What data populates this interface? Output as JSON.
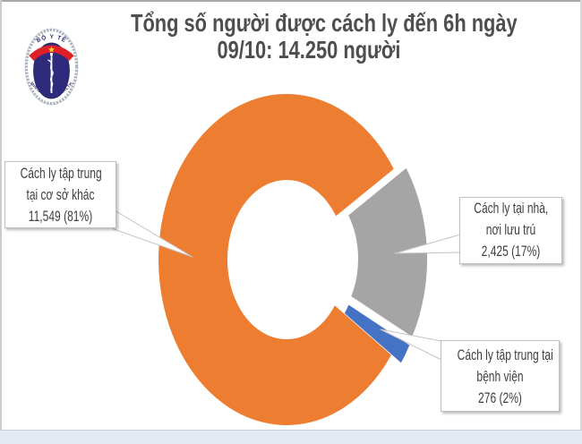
{
  "title": {
    "line1": "Tổng số người được cách ly đến 6h ngày",
    "line2": "09/10: 14.250 người"
  },
  "logo": {
    "top_text": "BỘ Y TẾ",
    "bottom_text": "MINISTRY OF HEALTH"
  },
  "chart_data": {
    "type": "pie",
    "variant": "doughnut-exploded",
    "title": "Tổng số người được cách ly đến 6h ngày 09/10: 14.250 người",
    "total_display": "14.250 người",
    "rotation_deg_clockwise_from_top": 125.2,
    "legend": "none",
    "series": [
      {
        "name": "Cách ly tập trung tại cơ sở khác",
        "value": 11549,
        "display_value": "11,549",
        "pct": 81,
        "color": "#ED7D31",
        "exploded": false
      },
      {
        "name": "Cách ly tại nhà, nơi lưu trú",
        "value": 2425,
        "display_value": "2,425",
        "pct": 17,
        "color": "#A5A5A5",
        "exploded": true
      },
      {
        "name": "Cách ly tập trung tại bệnh viện",
        "value": 276,
        "display_value": "276",
        "pct": 2,
        "color": "#4472C4",
        "exploded": true
      }
    ]
  },
  "callouts": [
    {
      "lines": [
        "Cách ly tập trung",
        "tại cơ sở khác",
        "11,549 (81%)"
      ]
    },
    {
      "lines": [
        "Cách ly tại nhà,",
        "nơi lưu trú",
        "2,425 (17%)"
      ]
    },
    {
      "lines": [
        "Cách ly tập trung tại",
        "bệnh viện",
        "276 (2%)"
      ]
    }
  ],
  "colors": {
    "title_text": "#4e4e50",
    "label_text": "#3f3f3f",
    "bottom_strip": "#e3e8f1"
  }
}
